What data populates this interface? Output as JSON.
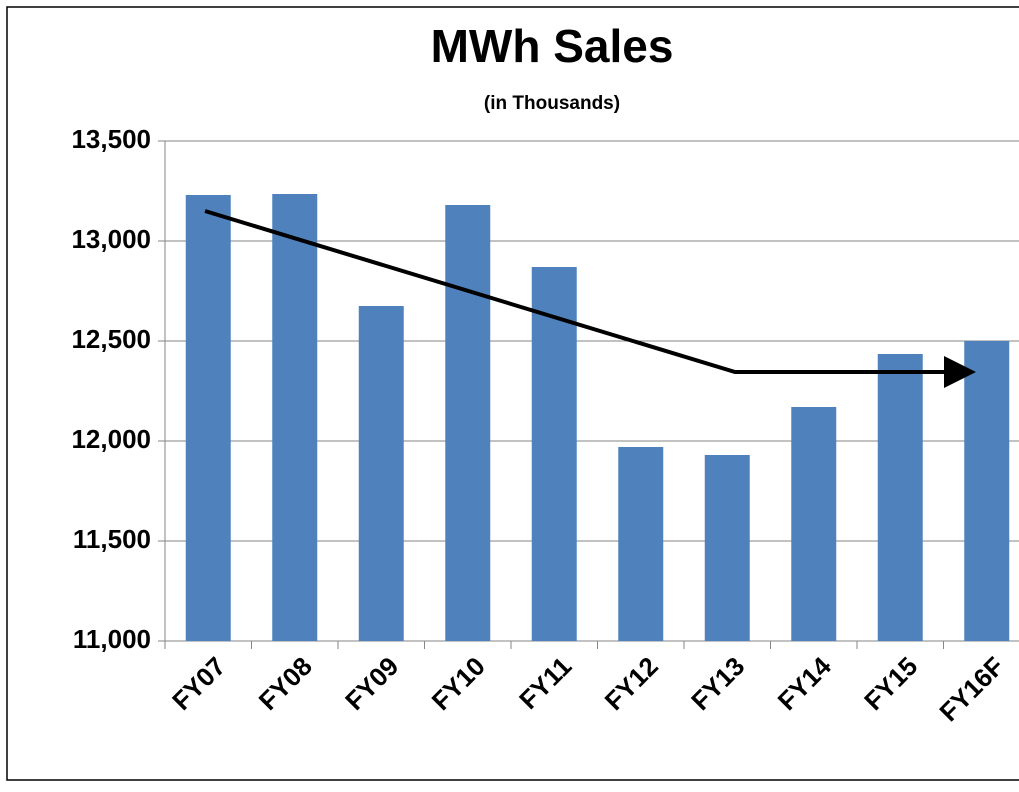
{
  "chart_data": {
    "type": "bar",
    "title": "MWh Sales",
    "subtitle": "(in Thousands)",
    "categories": [
      "FY07",
      "FY08",
      "FY09",
      "FY10",
      "FY11",
      "FY12",
      "FY13",
      "FY14",
      "FY15",
      "FY16F"
    ],
    "values": [
      13230,
      13235,
      12675,
      13180,
      12870,
      11970,
      11930,
      12170,
      12435,
      12500
    ],
    "color": "#4f81bd",
    "ylim": [
      11000,
      13500
    ],
    "yticks": [
      {
        "value": 11000,
        "label": "11,000"
      },
      {
        "value": 11500,
        "label": "11,500"
      },
      {
        "value": 12000,
        "label": "12,000"
      },
      {
        "value": 12500,
        "label": "12,500"
      },
      {
        "value": 13000,
        "label": "13,000"
      },
      {
        "value": 13500,
        "label": "13,500"
      }
    ],
    "grid": true
  }
}
